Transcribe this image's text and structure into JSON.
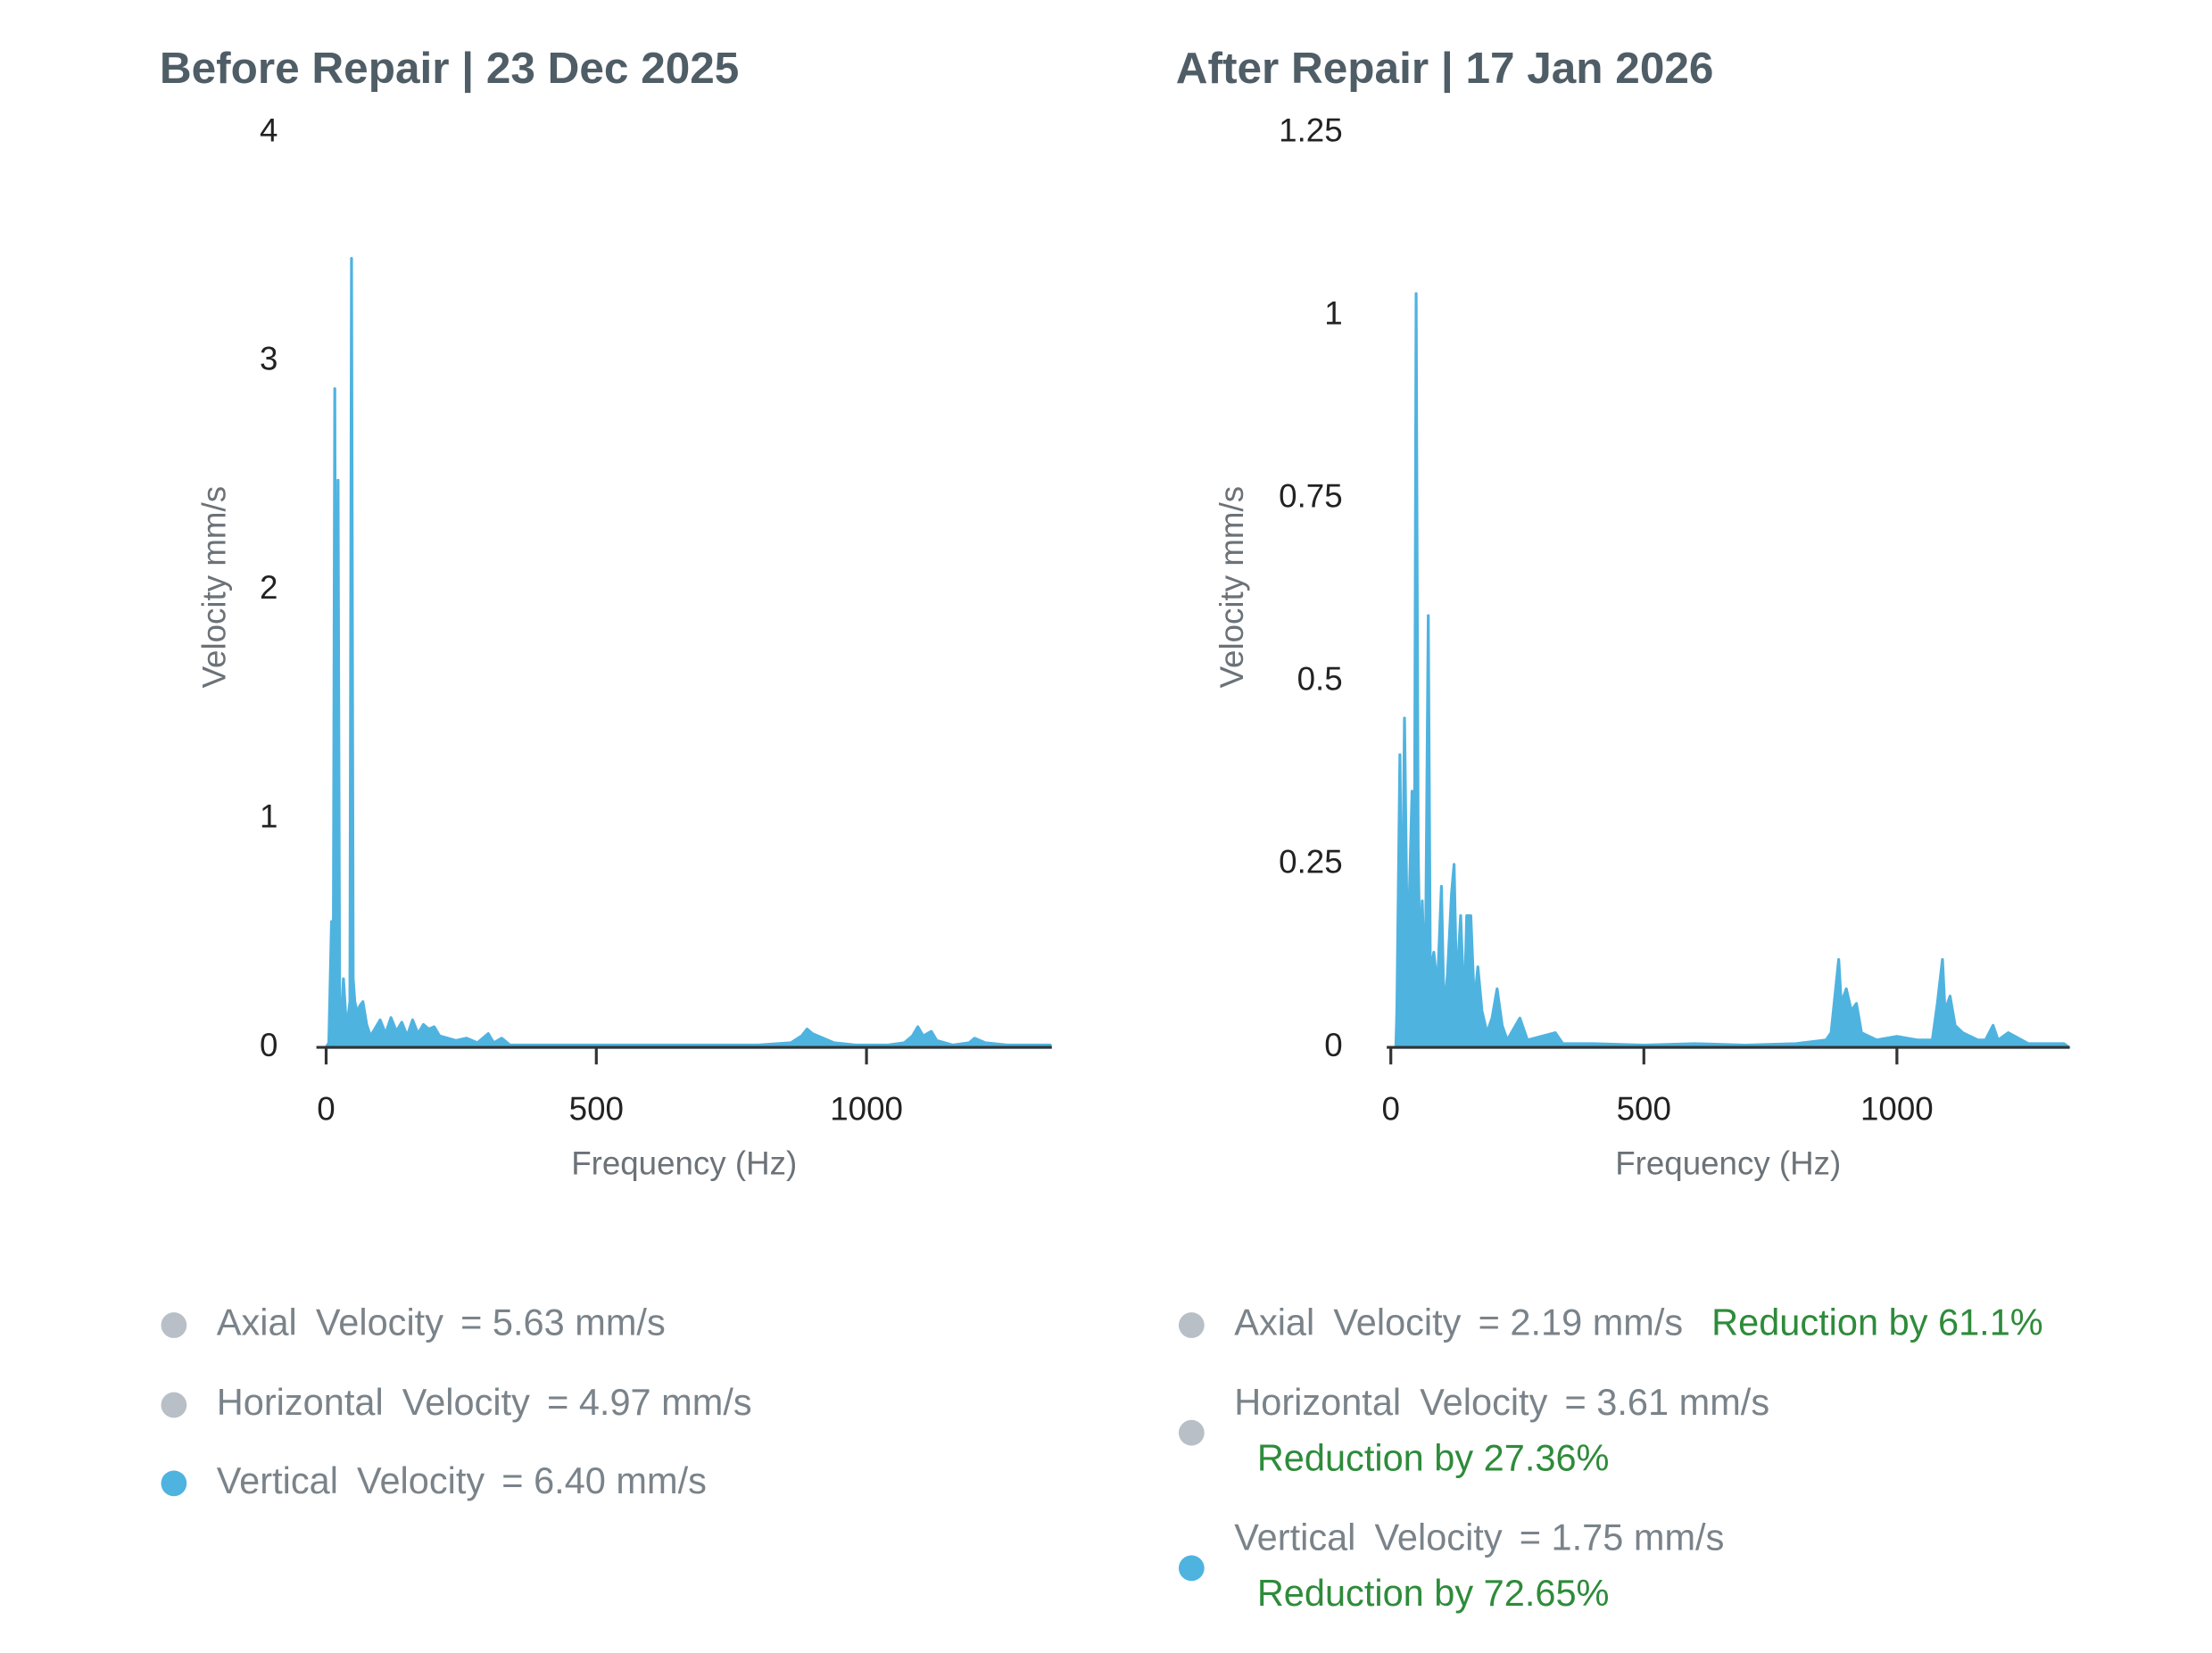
{
  "chart_data": [
    {
      "type": "area",
      "title": "Before Repair | 23 Dec 2025",
      "xlabel": "Frequency (Hz)",
      "ylabel": "Velocity mm/s",
      "color": "#4fb3e0",
      "x": [
        0,
        5,
        10,
        13,
        16,
        19,
        22,
        25,
        28,
        32,
        36,
        40,
        44,
        47,
        50,
        53,
        58,
        62,
        68,
        75,
        82,
        90,
        100,
        110,
        120,
        130,
        140,
        150,
        160,
        170,
        180,
        190,
        200,
        210,
        225,
        240,
        260,
        280,
        300,
        310,
        325,
        340,
        400,
        500,
        600,
        700,
        800,
        860,
        880,
        890,
        900,
        920,
        940,
        980,
        1040,
        1070,
        1085,
        1095,
        1105,
        1120,
        1130,
        1160,
        1190,
        1200,
        1220,
        1260,
        1340
      ],
      "values": [
        0,
        0.02,
        0.55,
        0.1,
        2.88,
        0.3,
        2.48,
        0.2,
        0.1,
        0.3,
        0.15,
        0.12,
        0.2,
        3.45,
        0.3,
        0.2,
        0.15,
        0.18,
        0.2,
        0.1,
        0.05,
        0.08,
        0.12,
        0.06,
        0.13,
        0.07,
        0.11,
        0.05,
        0.12,
        0.06,
        0.1,
        0.08,
        0.09,
        0.05,
        0.04,
        0.03,
        0.04,
        0.02,
        0.06,
        0.02,
        0.04,
        0.01,
        0.01,
        0.01,
        0.01,
        0.01,
        0.01,
        0.02,
        0.05,
        0.08,
        0.06,
        0.04,
        0.02,
        0.01,
        0.01,
        0.02,
        0.05,
        0.09,
        0.05,
        0.07,
        0.03,
        0.01,
        0.02,
        0.04,
        0.02,
        0.01,
        0.01
      ],
      "xlim": [
        -18,
        1343
      ],
      "ylim": [
        0,
        4
      ],
      "xticks": [
        0,
        500,
        1000
      ],
      "yticks": [
        0,
        1,
        2,
        3,
        4
      ],
      "stats": [
        {
          "name": "Axial Velocity",
          "value": "= 5.63 mm/s",
          "color": "#b8bfc6"
        },
        {
          "name": "Horizontal Velocity",
          "value": "= 4.97 mm/s",
          "color": "#b8bfc6"
        },
        {
          "name": "Vertical Velocity",
          "value": "= 6.40 mm/s",
          "color": "#4fb3e0"
        }
      ]
    },
    {
      "type": "area",
      "title": "After Repair | 17 Jan 2026",
      "xlabel": "Frequency (Hz)",
      "ylabel": "Velocity mm/s",
      "color": "#4fb3e0",
      "x": [
        0,
        10,
        12,
        18,
        22,
        27,
        32,
        36,
        42,
        46,
        50,
        54,
        58,
        62,
        68,
        74,
        78,
        85,
        92,
        100,
        105,
        112,
        120,
        125,
        130,
        138,
        145,
        150,
        158,
        165,
        172,
        180,
        190,
        200,
        210,
        220,
        230,
        255,
        270,
        325,
        340,
        400,
        500,
        600,
        700,
        800,
        860,
        870,
        885,
        890,
        900,
        910,
        920,
        930,
        960,
        1000,
        1040,
        1070,
        1080,
        1090,
        1095,
        1105,
        1115,
        1130,
        1160,
        1175,
        1190,
        1200,
        1220,
        1260,
        1300,
        1330,
        1340
      ],
      "values": [
        0,
        0,
        0.05,
        0.4,
        0.1,
        0.45,
        0.17,
        0.19,
        0.35,
        0.05,
        1.03,
        0.27,
        0.1,
        0.2,
        0.07,
        0.59,
        0.1,
        0.13,
        0.08,
        0.22,
        0.05,
        0.1,
        0.21,
        0.25,
        0.08,
        0.18,
        0.05,
        0.18,
        0.18,
        0.06,
        0.11,
        0.05,
        0.02,
        0.04,
        0.08,
        0.03,
        0.01,
        0.04,
        0.01,
        0.02,
        0.005,
        0.005,
        0.003,
        0.005,
        0.003,
        0.005,
        0.01,
        0.02,
        0.12,
        0.06,
        0.08,
        0.05,
        0.06,
        0.02,
        0.01,
        0.015,
        0.01,
        0.01,
        0.06,
        0.12,
        0.05,
        0.07,
        0.03,
        0.02,
        0.01,
        0.01,
        0.03,
        0.01,
        0.02,
        0.005,
        0.005,
        0.005,
        0
      ],
      "xlim": [
        -8,
        1341
      ],
      "ylim": [
        0,
        1.25
      ],
      "xticks": [
        0,
        500,
        1000
      ],
      "yticks": [
        0,
        0.25,
        0.5,
        0.75,
        1,
        1.25
      ],
      "stats": [
        {
          "name": "Axial Velocity",
          "value": "= 2.19 mm/s",
          "reduction": "Reduction by 61.1%",
          "color": "#b8bfc6"
        },
        {
          "name": "Horizontal Velocity",
          "value": "= 3.61 mm/s",
          "reduction": "Reduction by 27.36%",
          "color": "#b8bfc6"
        },
        {
          "name": "Vertical Velocity",
          "value": "= 1.75 mm/s",
          "reduction": "Reduction by 72.65%",
          "color": "#4fb3e0"
        }
      ]
    }
  ]
}
